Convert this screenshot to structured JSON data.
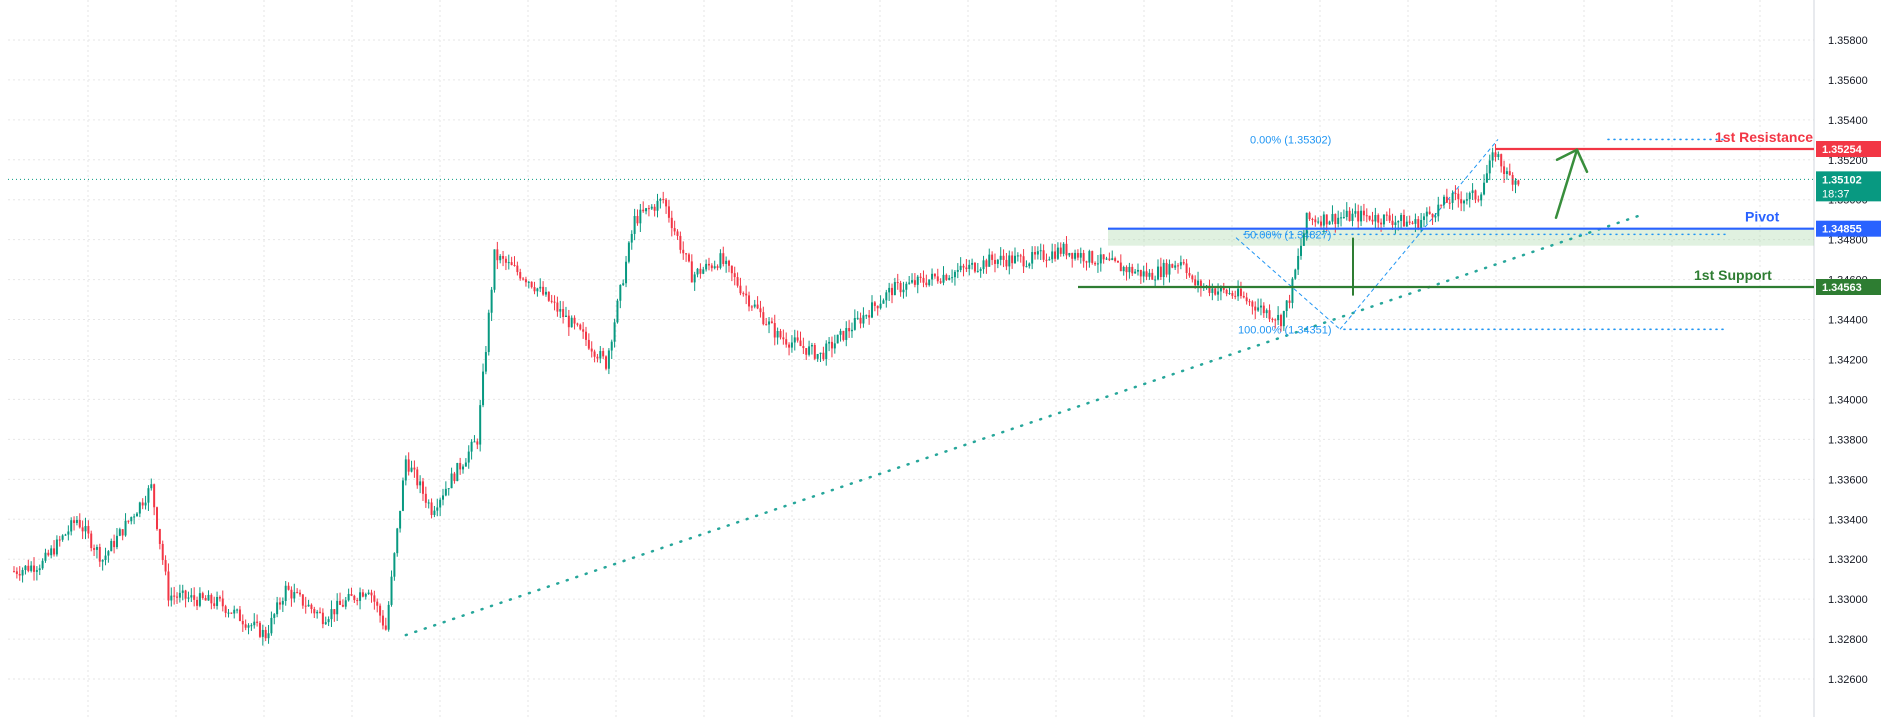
{
  "colors": {
    "up": "#089981",
    "down": "#f23645",
    "grid": "#e6e6e6",
    "axis_text": "#131722",
    "resistance": "#f23645",
    "pivot": "#2962ff",
    "support": "#2e7d32",
    "fib": "#2196f3",
    "trend": "#26a69a",
    "arrow": "#388e3c",
    "current": "#089981"
  },
  "chart_data": {
    "type": "candlestick",
    "title": "",
    "xlabel": "",
    "ylabel": "",
    "ylim": [
      1.3253,
      1.3594
    ],
    "grid": true,
    "y_axis_position": "right",
    "y_ticks": [
      "1.35800",
      "1.35600",
      "1.35400",
      "1.35200",
      "1.35000",
      "1.34800",
      "1.34600",
      "1.34400",
      "1.34200",
      "1.34000",
      "1.33800",
      "1.33600",
      "1.33400",
      "1.33200",
      "1.33000",
      "1.32800",
      "1.32600"
    ],
    "anchors": [
      [
        0,
        1.3314
      ],
      [
        10,
        1.3318
      ],
      [
        22,
        1.334
      ],
      [
        31,
        1.332
      ],
      [
        48,
        1.3356
      ],
      [
        54,
        1.3302
      ],
      [
        72,
        1.3298
      ],
      [
        88,
        1.3282
      ],
      [
        95,
        1.3305
      ],
      [
        108,
        1.3291
      ],
      [
        124,
        1.3306
      ],
      [
        130,
        1.3285
      ],
      [
        137,
        1.337
      ],
      [
        146,
        1.3345
      ],
      [
        162,
        1.338
      ],
      [
        168,
        1.3472
      ],
      [
        180,
        1.346
      ],
      [
        200,
        1.343
      ],
      [
        207,
        1.3418
      ],
      [
        217,
        1.349
      ],
      [
        227,
        1.35
      ],
      [
        237,
        1.3462
      ],
      [
        247,
        1.347
      ],
      [
        257,
        1.345
      ],
      [
        267,
        1.3432
      ],
      [
        282,
        1.3422
      ],
      [
        307,
        1.3455
      ],
      [
        332,
        1.3465
      ],
      [
        342,
        1.347
      ],
      [
        355,
        1.347
      ],
      [
        367,
        1.3475
      ],
      [
        385,
        1.3467
      ],
      [
        397,
        1.3462
      ],
      [
        409,
        1.347
      ],
      [
        412,
        1.3458
      ],
      [
        428,
        1.3452
      ],
      [
        443,
        1.344
      ],
      [
        446,
        1.3451
      ],
      [
        452,
        1.349
      ],
      [
        472,
        1.3492
      ],
      [
        482,
        1.349
      ],
      [
        490,
        1.3488
      ],
      [
        502,
        1.35
      ],
      [
        512,
        1.3502
      ],
      [
        518,
        1.3524
      ],
      [
        522,
        1.3512
      ],
      [
        526,
        1.351
      ]
    ],
    "price_levels": [
      {
        "name": "1st Resistance",
        "value": 1.35254,
        "label": "1.35254"
      },
      {
        "name": "Pivot",
        "value": 1.34855,
        "label": "1.34855"
      },
      {
        "name": "1st Support",
        "value": 1.34563,
        "label": "1.34563"
      }
    ],
    "current_price": {
      "value": 1.35102,
      "label": "1.35102",
      "countdown": "18:37"
    },
    "fibonacci": {
      "high": 1.35302,
      "low": 1.34351,
      "levels": [
        {
          "ratio": "0.00%",
          "price": "(1.35302)"
        },
        {
          "ratio": "50.00%",
          "price": "(1.34827)"
        },
        {
          "ratio": "100.00%",
          "price": "(1.34351)"
        }
      ]
    }
  }
}
